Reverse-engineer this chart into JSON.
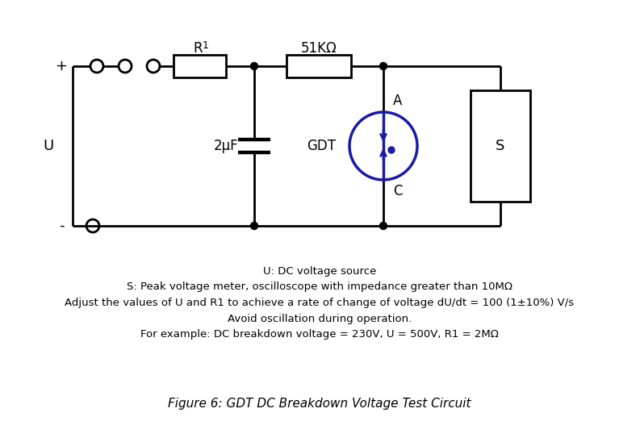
{
  "background_color": "#ffffff",
  "line_color": "#000000",
  "blue_color": "#1a1aaa",
  "title": "Figure 6: GDT DC Breakdown Voltage Test Circuit",
  "title_fontsize": 11,
  "annotation_text": "U: DC voltage source\nS: Peak voltage meter, oscilloscope with impedance greater than 10MΩ\nAdjust the values of U and R1 to achieve a rate of change of voltage dU/dt = 100 (1±10%) V/s\nAvoid oscillation during operation.\nFor example: DC breakdown voltage = 230V, U = 500V, R1 = 2MΩ",
  "annotation_fontsize": 9.5,
  "label_U": "U",
  "label_plus": "+",
  "label_minus": "-",
  "label_R1": "R",
  "label_R1_sub": "1",
  "label_51K": "51KΩ",
  "label_2uF": "2μF",
  "label_GDT": "GDT",
  "label_A": "A",
  "label_C": "C",
  "label_S": "S",
  "lw": 2.0,
  "lw_thick": 3.2
}
